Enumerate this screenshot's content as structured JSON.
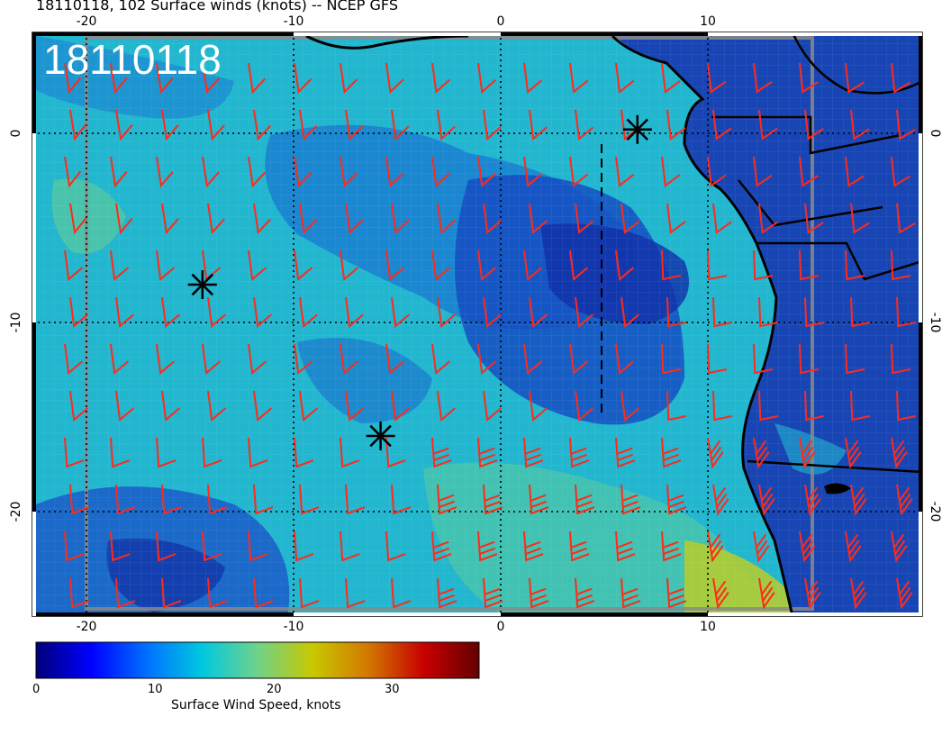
{
  "title": "18110118, 102 Surface winds (knots) -- NCEP GFS",
  "date_stamp": "18110118",
  "colors": {
    "barb": "#ff2a1a",
    "coast": "#000000",
    "frame_gray": "#8a8a8a",
    "ocean_light": "#22b6cf",
    "ocean_mid": "#1a7fd0",
    "ocean_dark": "#1435b8",
    "land": "#1845b4",
    "highwind": "#b9cc2a"
  },
  "axes": {
    "lon_ticks": [
      "-20",
      "-10",
      "0",
      "10"
    ],
    "lat_ticks": [
      "0",
      "-10",
      "-20"
    ]
  },
  "colorbar": {
    "label": "Surface Wind Speed, knots",
    "ticks": [
      "0",
      "10",
      "20",
      "30"
    ],
    "range": [
      0,
      37
    ],
    "colors": [
      "#00007a",
      "#0000ff",
      "#0070ff",
      "#00c8e0",
      "#6fd28a",
      "#c8c800",
      "#d27800",
      "#c80000",
      "#640000"
    ]
  },
  "markers": [
    {
      "name": "storm-marker-1",
      "lon": -14.4,
      "lat": -8.0
    },
    {
      "name": "storm-marker-2",
      "lon": -5.8,
      "lat": -16.0
    },
    {
      "name": "storm-marker-3",
      "lon": 6.6,
      "lat": 0.2
    }
  ]
}
